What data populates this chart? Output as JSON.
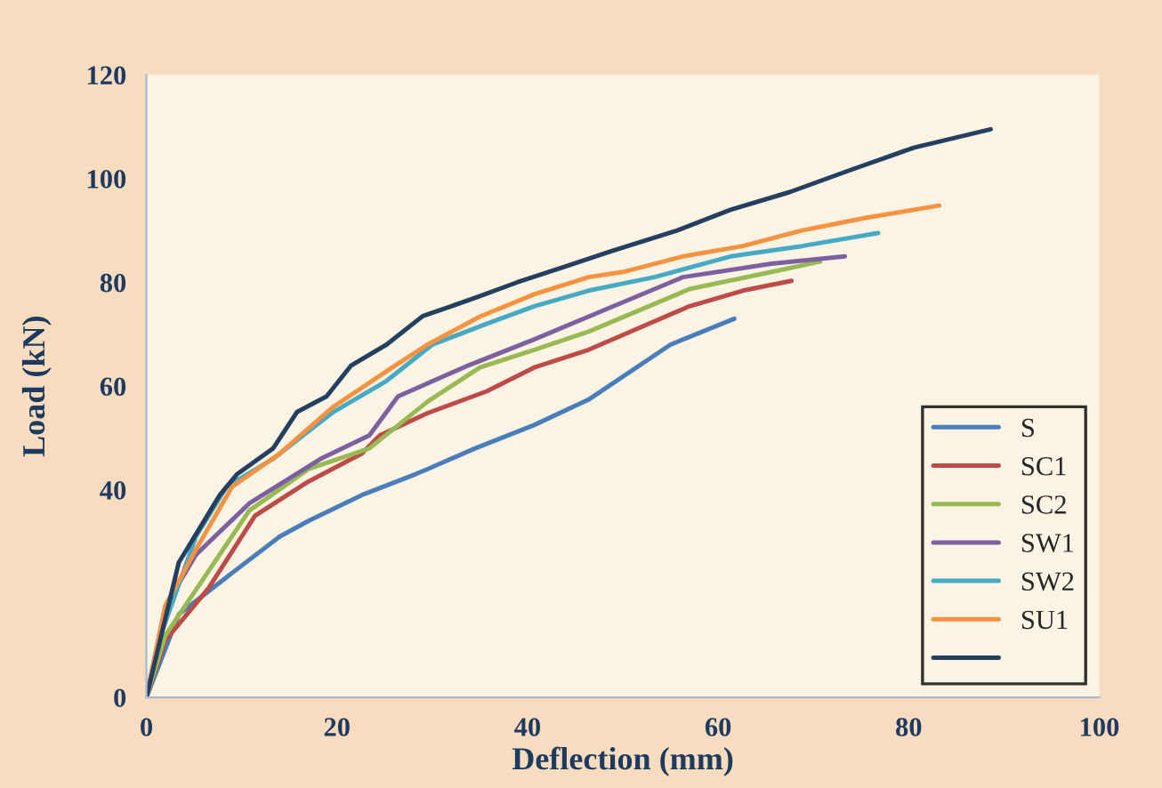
{
  "chart_data": {
    "type": "line",
    "xlabel": "Deflection (mm)",
    "ylabel": "Load (kN)",
    "xlim": [
      0,
      100
    ],
    "xticks": [
      0,
      20,
      40,
      60,
      80,
      100
    ],
    "ylim": [
      0,
      120
    ],
    "yticks": [
      0,
      40,
      60,
      80,
      100,
      120
    ],
    "grid": false,
    "legend": "bottom right",
    "marker": "none",
    "line_style": "solid",
    "series": [
      {
        "name": "S",
        "color": "#4a7ebb",
        "x": [
          0,
          3.4,
          9,
          14,
          17,
          22.6,
          28.2,
          29.5,
          34.5,
          40.7,
          46.4,
          55,
          61.7
        ],
        "values": [
          0,
          16,
          24,
          31,
          34,
          39,
          43,
          44,
          48,
          52.5,
          57.4,
          68,
          73
        ]
      },
      {
        "name": "SC1",
        "color": "#be4b48",
        "x": [
          0,
          2,
          6.5,
          11.4,
          17,
          22.6,
          24.5,
          29.5,
          35.7,
          40.7,
          46.4,
          57,
          62.6,
          67.7
        ],
        "values": [
          0,
          11,
          21,
          35,
          41.6,
          47,
          50.5,
          54.8,
          59,
          63.6,
          67,
          75.4,
          78.4,
          80.3
        ]
      },
      {
        "name": "SC2",
        "color": "#98b954",
        "x": [
          0,
          2,
          10.8,
          17,
          23.4,
          29.5,
          35,
          40.7,
          46.4,
          57,
          65.6,
          70.7
        ],
        "values": [
          0,
          12,
          36,
          44,
          48,
          57,
          63.6,
          67,
          70.5,
          78.7,
          82,
          84
        ]
      },
      {
        "name": "SW1",
        "color": "#7d60a0",
        "x": [
          0,
          2,
          5.2,
          10.8,
          18.3,
          23.4,
          26.4,
          33.8,
          40.7,
          46.4,
          56.3,
          65.6,
          73.3
        ],
        "values": [
          0,
          17.7,
          27.5,
          37.4,
          46,
          50.5,
          58,
          64,
          69,
          73.4,
          81,
          83.6,
          85
        ]
      },
      {
        "name": "SW2",
        "color": "#46aac5",
        "x": [
          0,
          1.5,
          5.2,
          8.4,
          13.3,
          19.6,
          25.2,
          30,
          35.7,
          40.7,
          46.4,
          53.3,
          61.3,
          68.8,
          76.8
        ],
        "values": [
          0,
          12,
          31,
          40.6,
          46,
          55,
          61,
          68,
          72,
          75.4,
          78.4,
          81,
          85,
          87,
          89.5
        ]
      },
      {
        "name": "SU1",
        "color": "#f69240",
        "x": [
          0,
          2,
          5.2,
          9,
          14,
          19.6,
          25.8,
          29.5,
          35,
          40.7,
          46.4,
          50,
          56.3,
          62.6,
          68.8,
          75.7,
          83.2
        ],
        "values": [
          0,
          17.7,
          28.5,
          40.6,
          47,
          56,
          63.6,
          68,
          73.4,
          77.7,
          81,
          82,
          85,
          87,
          90,
          92.5,
          94.8
        ]
      },
      {
        "name": null,
        "color": "#243f60",
        "x": [
          0,
          3.4,
          7.7,
          9.5,
          13.3,
          15.8,
          18.9,
          21.5,
          25.2,
          29,
          34.5,
          38.9,
          43.9,
          48.8,
          55.7,
          61.3,
          67.5,
          73.8,
          80.6,
          88.6
        ],
        "values": [
          0,
          26,
          39,
          43,
          48,
          55,
          58,
          64,
          68,
          73.5,
          77,
          80,
          83,
          86,
          90,
          94,
          97.4,
          101.6,
          106,
          109.5
        ]
      }
    ]
  }
}
